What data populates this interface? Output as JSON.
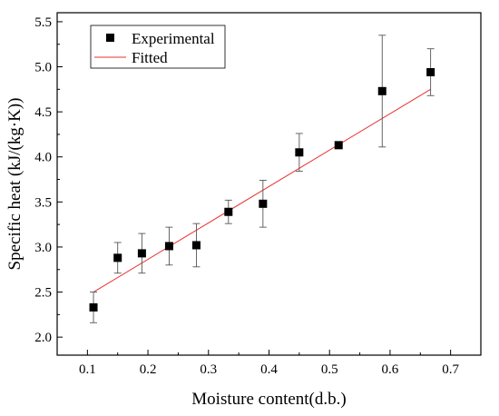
{
  "chart_data": {
    "type": "scatter",
    "xlabel": "Moisture content(d.b.)",
    "ylabel": "Specific heat (kJ/(kg·K))",
    "xlim": [
      0.05,
      0.75
    ],
    "ylim": [
      1.8,
      5.6
    ],
    "xticks": [
      0.1,
      0.2,
      0.3,
      0.4,
      0.5,
      0.6,
      0.7
    ],
    "xtick_labels": [
      "0.1",
      "0.2",
      "0.3",
      "0.4",
      "0.5",
      "0.6",
      "0.7"
    ],
    "yticks": [
      2.0,
      2.5,
      3.0,
      3.5,
      4.0,
      4.5,
      5.0,
      5.5
    ],
    "ytick_labels": [
      "2.0",
      "2.5",
      "3.0",
      "3.5",
      "4.0",
      "4.5",
      "5.0",
      "5.5"
    ],
    "grid": false,
    "legend": {
      "placement": "top-left",
      "entries": [
        "Experimental",
        "Fitted"
      ]
    },
    "series": [
      {
        "name": "Experimental",
        "kind": "scatter-with-error-bars",
        "marker": "square",
        "color": "#000000",
        "points": [
          {
            "x": 0.11,
            "y": 2.33,
            "err": 0.17
          },
          {
            "x": 0.15,
            "y": 2.88,
            "err": 0.17
          },
          {
            "x": 0.19,
            "y": 2.93,
            "err": 0.22
          },
          {
            "x": 0.235,
            "y": 3.01,
            "err": 0.21
          },
          {
            "x": 0.28,
            "y": 3.02,
            "err": 0.24
          },
          {
            "x": 0.333,
            "y": 3.39,
            "err": 0.13
          },
          {
            "x": 0.39,
            "y": 3.48,
            "err": 0.26
          },
          {
            "x": 0.45,
            "y": 4.05,
            "err": 0.21
          },
          {
            "x": 0.515,
            "y": 4.13,
            "err": 0.03
          },
          {
            "x": 0.587,
            "y": 4.73,
            "err": 0.62
          },
          {
            "x": 0.667,
            "y": 4.94,
            "err": 0.26
          }
        ]
      },
      {
        "name": "Fitted",
        "kind": "line",
        "color": "#e8312f",
        "x": [
          0.11,
          0.667
        ],
        "y": [
          2.5,
          4.75
        ]
      }
    ]
  }
}
